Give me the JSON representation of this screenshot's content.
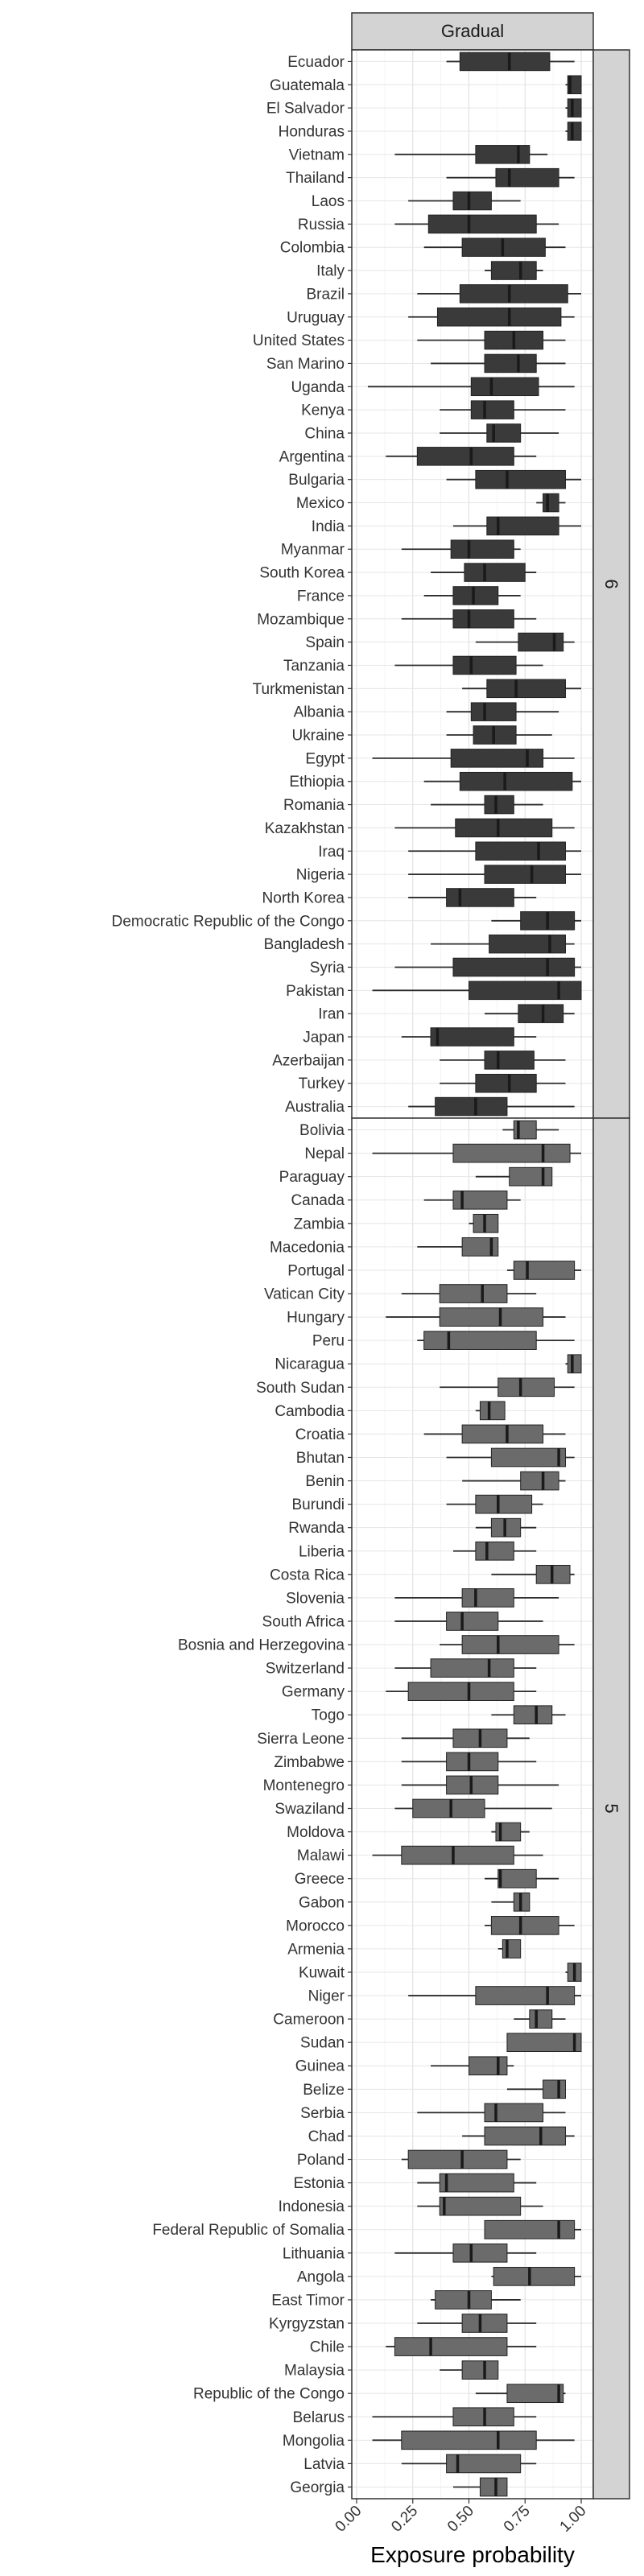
{
  "chart_data": {
    "type": "boxplot",
    "column_facet": "Gradual",
    "xlabel": "Exposure probability",
    "ylabel": "",
    "xlim": [
      0,
      1
    ],
    "x_ticks": [
      "0.00",
      "0.25",
      "0.50",
      "0.75",
      "1.00"
    ],
    "grid": true,
    "legend": "none",
    "colors": {
      "facet_6": "#3a3a3a",
      "facet_5": "#6b6b6b",
      "strip": "#d3d3d3",
      "median": "#1a1a1a"
    },
    "facets": [
      {
        "label": "6",
        "rows": [
          {
            "name": "Ecuador",
            "wmin": 0.4,
            "q1": 0.46,
            "med": 0.68,
            "q3": 0.86,
            "wmax": 0.97
          },
          {
            "name": "Guatemala",
            "wmin": 0.93,
            "q1": 0.94,
            "med": 0.95,
            "q3": 1.0,
            "wmax": 1.0
          },
          {
            "name": "El Salvador",
            "wmin": 0.93,
            "q1": 0.94,
            "med": 0.96,
            "q3": 1.0,
            "wmax": 1.0
          },
          {
            "name": "Honduras",
            "wmin": 0.93,
            "q1": 0.94,
            "med": 0.96,
            "q3": 1.0,
            "wmax": 1.0
          },
          {
            "name": "Vietnam",
            "wmin": 0.17,
            "q1": 0.53,
            "med": 0.72,
            "q3": 0.77,
            "wmax": 0.85
          },
          {
            "name": "Thailand",
            "wmin": 0.4,
            "q1": 0.62,
            "med": 0.68,
            "q3": 0.9,
            "wmax": 0.97
          },
          {
            "name": "Laos",
            "wmin": 0.23,
            "q1": 0.43,
            "med": 0.5,
            "q3": 0.6,
            "wmax": 0.73
          },
          {
            "name": "Russia",
            "wmin": 0.17,
            "q1": 0.32,
            "med": 0.5,
            "q3": 0.8,
            "wmax": 0.9
          },
          {
            "name": "Colombia",
            "wmin": 0.3,
            "q1": 0.47,
            "med": 0.65,
            "q3": 0.84,
            "wmax": 0.93
          },
          {
            "name": "Italy",
            "wmin": 0.57,
            "q1": 0.6,
            "med": 0.73,
            "q3": 0.8,
            "wmax": 0.83
          },
          {
            "name": "Brazil",
            "wmin": 0.27,
            "q1": 0.46,
            "med": 0.68,
            "q3": 0.94,
            "wmax": 1.0
          },
          {
            "name": "Uruguay",
            "wmin": 0.23,
            "q1": 0.36,
            "med": 0.68,
            "q3": 0.91,
            "wmax": 0.97
          },
          {
            "name": "United States",
            "wmin": 0.27,
            "q1": 0.57,
            "med": 0.7,
            "q3": 0.83,
            "wmax": 0.93
          },
          {
            "name": "San Marino",
            "wmin": 0.33,
            "q1": 0.57,
            "med": 0.72,
            "q3": 0.8,
            "wmax": 0.93
          },
          {
            "name": "Uganda",
            "wmin": 0.05,
            "q1": 0.51,
            "med": 0.6,
            "q3": 0.81,
            "wmax": 0.97
          },
          {
            "name": "Kenya",
            "wmin": 0.37,
            "q1": 0.51,
            "med": 0.57,
            "q3": 0.7,
            "wmax": 0.93
          },
          {
            "name": "China",
            "wmin": 0.37,
            "q1": 0.58,
            "med": 0.61,
            "q3": 0.73,
            "wmax": 0.9
          },
          {
            "name": "Argentina",
            "wmin": 0.13,
            "q1": 0.27,
            "med": 0.51,
            "q3": 0.7,
            "wmax": 0.8
          },
          {
            "name": "Bulgaria",
            "wmin": 0.4,
            "q1": 0.53,
            "med": 0.67,
            "q3": 0.93,
            "wmax": 1.0
          },
          {
            "name": "Mexico",
            "wmin": 0.8,
            "q1": 0.83,
            "med": 0.85,
            "q3": 0.9,
            "wmax": 0.93
          },
          {
            "name": "India",
            "wmin": 0.43,
            "q1": 0.58,
            "med": 0.63,
            "q3": 0.9,
            "wmax": 1.0
          },
          {
            "name": "Myanmar",
            "wmin": 0.2,
            "q1": 0.42,
            "med": 0.5,
            "q3": 0.7,
            "wmax": 0.73
          },
          {
            "name": "South Korea",
            "wmin": 0.33,
            "q1": 0.48,
            "med": 0.57,
            "q3": 0.75,
            "wmax": 0.8
          },
          {
            "name": "France",
            "wmin": 0.3,
            "q1": 0.43,
            "med": 0.52,
            "q3": 0.63,
            "wmax": 0.73
          },
          {
            "name": "Mozambique",
            "wmin": 0.2,
            "q1": 0.43,
            "med": 0.5,
            "q3": 0.7,
            "wmax": 0.8
          },
          {
            "name": "Spain",
            "wmin": 0.53,
            "q1": 0.72,
            "med": 0.88,
            "q3": 0.92,
            "wmax": 0.97
          },
          {
            "name": "Tanzania",
            "wmin": 0.17,
            "q1": 0.43,
            "med": 0.51,
            "q3": 0.71,
            "wmax": 0.83
          },
          {
            "name": "Turkmenistan",
            "wmin": 0.47,
            "q1": 0.58,
            "med": 0.71,
            "q3": 0.93,
            "wmax": 1.0
          },
          {
            "name": "Albania",
            "wmin": 0.4,
            "q1": 0.51,
            "med": 0.57,
            "q3": 0.71,
            "wmax": 0.9
          },
          {
            "name": "Ukraine",
            "wmin": 0.4,
            "q1": 0.52,
            "med": 0.61,
            "q3": 0.71,
            "wmax": 0.87
          },
          {
            "name": "Egypt",
            "wmin": 0.07,
            "q1": 0.42,
            "med": 0.76,
            "q3": 0.83,
            "wmax": 0.97
          },
          {
            "name": "Ethiopia",
            "wmin": 0.3,
            "q1": 0.46,
            "med": 0.66,
            "q3": 0.96,
            "wmax": 1.0
          },
          {
            "name": "Romania",
            "wmin": 0.33,
            "q1": 0.57,
            "med": 0.62,
            "q3": 0.7,
            "wmax": 0.83
          },
          {
            "name": "Kazakhstan",
            "wmin": 0.17,
            "q1": 0.44,
            "med": 0.63,
            "q3": 0.87,
            "wmax": 0.97
          },
          {
            "name": "Iraq",
            "wmin": 0.23,
            "q1": 0.53,
            "med": 0.81,
            "q3": 0.93,
            "wmax": 1.0
          },
          {
            "name": "Nigeria",
            "wmin": 0.23,
            "q1": 0.57,
            "med": 0.78,
            "q3": 0.93,
            "wmax": 1.0
          },
          {
            "name": "North Korea",
            "wmin": 0.23,
            "q1": 0.4,
            "med": 0.46,
            "q3": 0.7,
            "wmax": 0.8
          },
          {
            "name": "Democratic Republic of the Congo",
            "wmin": 0.6,
            "q1": 0.73,
            "med": 0.85,
            "q3": 0.97,
            "wmax": 1.0
          },
          {
            "name": "Bangladesh",
            "wmin": 0.33,
            "q1": 0.59,
            "med": 0.86,
            "q3": 0.93,
            "wmax": 0.97
          },
          {
            "name": "Syria",
            "wmin": 0.17,
            "q1": 0.43,
            "med": 0.85,
            "q3": 0.97,
            "wmax": 1.0
          },
          {
            "name": "Pakistan",
            "wmin": 0.07,
            "q1": 0.5,
            "med": 0.9,
            "q3": 1.0,
            "wmax": 1.0
          },
          {
            "name": "Iran",
            "wmin": 0.57,
            "q1": 0.72,
            "med": 0.83,
            "q3": 0.92,
            "wmax": 0.97
          },
          {
            "name": "Japan",
            "wmin": 0.2,
            "q1": 0.33,
            "med": 0.36,
            "q3": 0.7,
            "wmax": 0.8
          },
          {
            "name": "Azerbaijan",
            "wmin": 0.37,
            "q1": 0.57,
            "med": 0.63,
            "q3": 0.79,
            "wmax": 0.93
          },
          {
            "name": "Turkey",
            "wmin": 0.37,
            "q1": 0.53,
            "med": 0.68,
            "q3": 0.8,
            "wmax": 0.93
          },
          {
            "name": "Australia",
            "wmin": 0.23,
            "q1": 0.35,
            "med": 0.53,
            "q3": 0.67,
            "wmax": 0.97
          }
        ]
      },
      {
        "label": "5",
        "rows": [
          {
            "name": "Bolivia",
            "wmin": 0.65,
            "q1": 0.7,
            "med": 0.72,
            "q3": 0.8,
            "wmax": 0.9
          },
          {
            "name": "Nepal",
            "wmin": 0.07,
            "q1": 0.43,
            "med": 0.83,
            "q3": 0.95,
            "wmax": 1.0
          },
          {
            "name": "Paraguay",
            "wmin": 0.53,
            "q1": 0.68,
            "med": 0.83,
            "q3": 0.87,
            "wmax": 0.87
          },
          {
            "name": "Canada",
            "wmin": 0.3,
            "q1": 0.43,
            "med": 0.47,
            "q3": 0.67,
            "wmax": 0.73
          },
          {
            "name": "Zambia",
            "wmin": 0.5,
            "q1": 0.52,
            "med": 0.57,
            "q3": 0.63,
            "wmax": 0.63
          },
          {
            "name": "Macedonia",
            "wmin": 0.27,
            "q1": 0.47,
            "med": 0.6,
            "q3": 0.63,
            "wmax": 0.63
          },
          {
            "name": "Portugal",
            "wmin": 0.67,
            "q1": 0.7,
            "med": 0.76,
            "q3": 0.97,
            "wmax": 1.0
          },
          {
            "name": "Vatican City",
            "wmin": 0.2,
            "q1": 0.37,
            "med": 0.56,
            "q3": 0.67,
            "wmax": 0.8
          },
          {
            "name": "Hungary",
            "wmin": 0.13,
            "q1": 0.37,
            "med": 0.64,
            "q3": 0.83,
            "wmax": 0.93
          },
          {
            "name": "Peru",
            "wmin": 0.27,
            "q1": 0.3,
            "med": 0.41,
            "q3": 0.8,
            "wmax": 0.97
          },
          {
            "name": "Nicaragua",
            "wmin": 0.93,
            "q1": 0.94,
            "med": 0.96,
            "q3": 1.0,
            "wmax": 1.0
          },
          {
            "name": "South Sudan",
            "wmin": 0.37,
            "q1": 0.63,
            "med": 0.73,
            "q3": 0.88,
            "wmax": 0.97
          },
          {
            "name": "Cambodia",
            "wmin": 0.53,
            "q1": 0.55,
            "med": 0.59,
            "q3": 0.66,
            "wmax": 0.66
          },
          {
            "name": "Croatia",
            "wmin": 0.3,
            "q1": 0.47,
            "med": 0.67,
            "q3": 0.83,
            "wmax": 0.93
          },
          {
            "name": "Bhutan",
            "wmin": 0.4,
            "q1": 0.6,
            "med": 0.9,
            "q3": 0.93,
            "wmax": 0.97
          },
          {
            "name": "Benin",
            "wmin": 0.47,
            "q1": 0.73,
            "med": 0.83,
            "q3": 0.9,
            "wmax": 0.93
          },
          {
            "name": "Burundi",
            "wmin": 0.4,
            "q1": 0.53,
            "med": 0.63,
            "q3": 0.78,
            "wmax": 0.83
          },
          {
            "name": "Rwanda",
            "wmin": 0.53,
            "q1": 0.6,
            "med": 0.66,
            "q3": 0.73,
            "wmax": 0.8
          },
          {
            "name": "Liberia",
            "wmin": 0.43,
            "q1": 0.53,
            "med": 0.58,
            "q3": 0.7,
            "wmax": 0.8
          },
          {
            "name": "Costa Rica",
            "wmin": 0.6,
            "q1": 0.8,
            "med": 0.87,
            "q3": 0.95,
            "wmax": 0.97
          },
          {
            "name": "Slovenia",
            "wmin": 0.17,
            "q1": 0.47,
            "med": 0.53,
            "q3": 0.7,
            "wmax": 0.9
          },
          {
            "name": "South Africa",
            "wmin": 0.17,
            "q1": 0.4,
            "med": 0.47,
            "q3": 0.63,
            "wmax": 0.83
          },
          {
            "name": "Bosnia and Herzegovina",
            "wmin": 0.37,
            "q1": 0.47,
            "med": 0.63,
            "q3": 0.9,
            "wmax": 0.97
          },
          {
            "name": "Switzerland",
            "wmin": 0.17,
            "q1": 0.33,
            "med": 0.59,
            "q3": 0.7,
            "wmax": 0.8
          },
          {
            "name": "Germany",
            "wmin": 0.13,
            "q1": 0.23,
            "med": 0.5,
            "q3": 0.7,
            "wmax": 0.8
          },
          {
            "name": "Togo",
            "wmin": 0.6,
            "q1": 0.7,
            "med": 0.8,
            "q3": 0.87,
            "wmax": 0.93
          },
          {
            "name": "Sierra Leone",
            "wmin": 0.2,
            "q1": 0.43,
            "med": 0.55,
            "q3": 0.67,
            "wmax": 0.77
          },
          {
            "name": "Zimbabwe",
            "wmin": 0.2,
            "q1": 0.4,
            "med": 0.5,
            "q3": 0.63,
            "wmax": 0.8
          },
          {
            "name": "Montenegro",
            "wmin": 0.2,
            "q1": 0.4,
            "med": 0.51,
            "q3": 0.63,
            "wmax": 0.9
          },
          {
            "name": "Swaziland",
            "wmin": 0.17,
            "q1": 0.25,
            "med": 0.42,
            "q3": 0.57,
            "wmax": 0.87
          },
          {
            "name": "Moldova",
            "wmin": 0.6,
            "q1": 0.62,
            "med": 0.64,
            "q3": 0.73,
            "wmax": 0.77
          },
          {
            "name": "Malawi",
            "wmin": 0.07,
            "q1": 0.2,
            "med": 0.43,
            "q3": 0.7,
            "wmax": 0.83
          },
          {
            "name": "Greece",
            "wmin": 0.57,
            "q1": 0.63,
            "med": 0.64,
            "q3": 0.8,
            "wmax": 0.9
          },
          {
            "name": "Gabon",
            "wmin": 0.6,
            "q1": 0.7,
            "med": 0.73,
            "q3": 0.77,
            "wmax": 0.77
          },
          {
            "name": "Morocco",
            "wmin": 0.57,
            "q1": 0.6,
            "med": 0.73,
            "q3": 0.9,
            "wmax": 0.97
          },
          {
            "name": "Armenia",
            "wmin": 0.63,
            "q1": 0.65,
            "med": 0.67,
            "q3": 0.73,
            "wmax": 0.73
          },
          {
            "name": "Kuwait",
            "wmin": 0.93,
            "q1": 0.94,
            "med": 0.97,
            "q3": 1.0,
            "wmax": 1.0
          },
          {
            "name": "Niger",
            "wmin": 0.23,
            "q1": 0.53,
            "med": 0.85,
            "q3": 0.97,
            "wmax": 1.0
          },
          {
            "name": "Cameroon",
            "wmin": 0.7,
            "q1": 0.77,
            "med": 0.8,
            "q3": 0.87,
            "wmax": 0.93
          },
          {
            "name": "Sudan",
            "wmin": 0.67,
            "q1": 0.67,
            "med": 0.97,
            "q3": 1.0,
            "wmax": 1.0
          },
          {
            "name": "Guinea",
            "wmin": 0.33,
            "q1": 0.5,
            "med": 0.63,
            "q3": 0.67,
            "wmax": 0.7
          },
          {
            "name": "Belize",
            "wmin": 0.67,
            "q1": 0.83,
            "med": 0.9,
            "q3": 0.93,
            "wmax": 0.93
          },
          {
            "name": "Serbia",
            "wmin": 0.27,
            "q1": 0.57,
            "med": 0.62,
            "q3": 0.83,
            "wmax": 0.93
          },
          {
            "name": "Chad",
            "wmin": 0.47,
            "q1": 0.57,
            "med": 0.82,
            "q3": 0.93,
            "wmax": 0.97
          },
          {
            "name": "Poland",
            "wmin": 0.2,
            "q1": 0.23,
            "med": 0.47,
            "q3": 0.67,
            "wmax": 0.73
          },
          {
            "name": "Estonia",
            "wmin": 0.27,
            "q1": 0.37,
            "med": 0.4,
            "q3": 0.7,
            "wmax": 0.8
          },
          {
            "name": "Indonesia",
            "wmin": 0.27,
            "q1": 0.37,
            "med": 0.39,
            "q3": 0.73,
            "wmax": 0.83
          },
          {
            "name": "Federal Republic of Somalia",
            "wmin": 0.57,
            "q1": 0.57,
            "med": 0.9,
            "q3": 0.97,
            "wmax": 1.0
          },
          {
            "name": "Lithuania",
            "wmin": 0.17,
            "q1": 0.43,
            "med": 0.51,
            "q3": 0.67,
            "wmax": 0.8
          },
          {
            "name": "Angola",
            "wmin": 0.6,
            "q1": 0.61,
            "med": 0.77,
            "q3": 0.97,
            "wmax": 1.0
          },
          {
            "name": "East Timor",
            "wmin": 0.33,
            "q1": 0.35,
            "med": 0.5,
            "q3": 0.6,
            "wmax": 0.73
          },
          {
            "name": "Kyrgyzstan",
            "wmin": 0.27,
            "q1": 0.47,
            "med": 0.55,
            "q3": 0.67,
            "wmax": 0.8
          },
          {
            "name": "Chile",
            "wmin": 0.13,
            "q1": 0.17,
            "med": 0.33,
            "q3": 0.67,
            "wmax": 0.8
          },
          {
            "name": "Malaysia",
            "wmin": 0.37,
            "q1": 0.47,
            "med": 0.57,
            "q3": 0.63,
            "wmax": 0.63
          },
          {
            "name": "Republic of the Congo",
            "wmin": 0.53,
            "q1": 0.67,
            "med": 0.9,
            "q3": 0.92,
            "wmax": 0.93
          },
          {
            "name": "Belarus",
            "wmin": 0.07,
            "q1": 0.43,
            "med": 0.57,
            "q3": 0.7,
            "wmax": 0.8
          },
          {
            "name": "Mongolia",
            "wmin": 0.07,
            "q1": 0.2,
            "med": 0.63,
            "q3": 0.8,
            "wmax": 0.97
          },
          {
            "name": "Latvia",
            "wmin": 0.2,
            "q1": 0.4,
            "med": 0.45,
            "q3": 0.73,
            "wmax": 0.8
          },
          {
            "name": "Georgia",
            "wmin": 0.43,
            "q1": 0.55,
            "med": 0.62,
            "q3": 0.67,
            "wmax": 0.67
          }
        ]
      }
    ]
  }
}
